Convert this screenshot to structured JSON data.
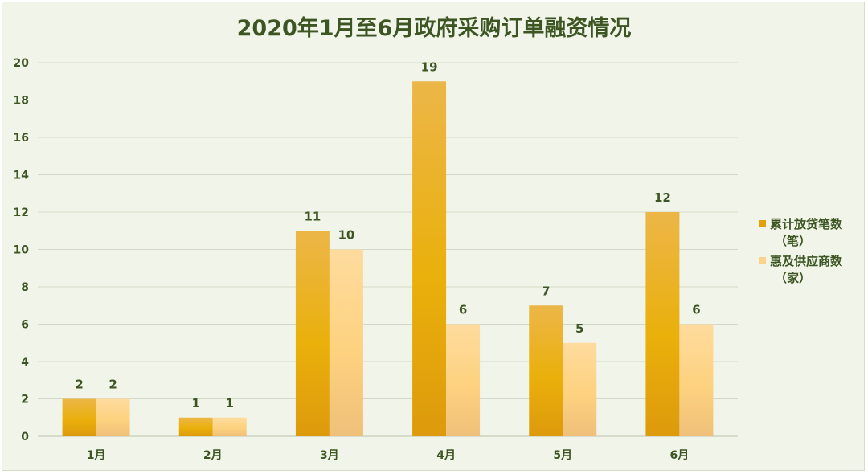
{
  "chart_data": {
    "type": "bar",
    "title": "2020年1月至6月政府采购订单融资情况",
    "categories": [
      "1月",
      "2月",
      "3月",
      "4月",
      "5月",
      "6月"
    ],
    "ylim": [
      0,
      20
    ],
    "yticks": [
      0,
      2,
      4,
      6,
      8,
      10,
      12,
      14,
      16,
      18,
      20
    ],
    "grid": true,
    "legend_position": "right",
    "series": [
      {
        "name_lines": [
          "累计放贷笔数",
          "（笔）"
        ],
        "values": [
          2,
          1,
          11,
          19,
          7,
          12
        ],
        "color": "#e9a712"
      },
      {
        "name_lines": [
          "惠及供应商数",
          "（家）"
        ],
        "values": [
          2,
          1,
          10,
          6,
          5,
          6
        ],
        "color": "#fcd28a"
      }
    ]
  }
}
